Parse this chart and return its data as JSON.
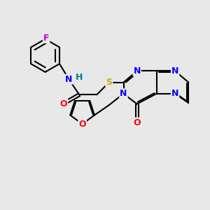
{
  "bg_color": "#e8e8e8",
  "bond_color": "#000000",
  "bond_width": 1.5,
  "atom_colors": {
    "N": "#0000ff",
    "O": "#ff0000",
    "S": "#ccaa00",
    "F": "#cc00cc",
    "H": "#008080",
    "C": "#000000"
  },
  "font_size": 9
}
